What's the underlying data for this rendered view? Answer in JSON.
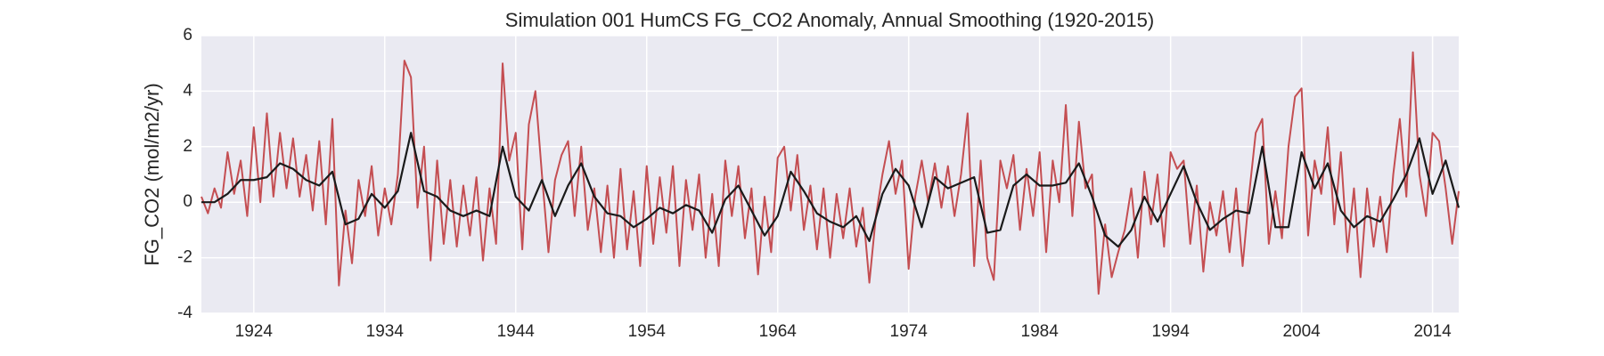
{
  "chart_data": {
    "type": "line",
    "title": "Simulation 001 HumCS FG_CO2 Anomaly, Annual Smoothing (1920-2015)",
    "y_label": "FG_CO2 (mol/m2/yr)",
    "xlim": [
      1920,
      2016
    ],
    "xticks": [
      1924,
      1934,
      1944,
      1954,
      1964,
      1974,
      1984,
      1994,
      2004,
      2014
    ],
    "ylim": [
      -4,
      6
    ],
    "yticks": [
      -4,
      -2,
      0,
      2,
      4,
      6
    ],
    "grid": true,
    "background": "#eaeaf2",
    "series": [
      {
        "color": "#c44e52",
        "x": [
          1920,
          1920.5,
          1921,
          1921.5,
          1922,
          1922.5,
          1923,
          1923.5,
          1924,
          1924.5,
          1925,
          1925.5,
          1926,
          1926.5,
          1927,
          1927.5,
          1928,
          1928.5,
          1929,
          1929.5,
          1930,
          1930.5,
          1931,
          1931.5,
          1932,
          1932.5,
          1933,
          1933.5,
          1934,
          1934.5,
          1935,
          1935.5,
          1936,
          1936.5,
          1937,
          1937.5,
          1938,
          1938.5,
          1939,
          1939.5,
          1940,
          1940.5,
          1941,
          1941.5,
          1942,
          1942.5,
          1943,
          1943.5,
          1944,
          1944.5,
          1945,
          1945.5,
          1946,
          1946.5,
          1947,
          1947.5,
          1948,
          1948.5,
          1949,
          1949.5,
          1950,
          1950.5,
          1951,
          1951.5,
          1952,
          1952.5,
          1953,
          1953.5,
          1954,
          1954.5,
          1955,
          1955.5,
          1956,
          1956.5,
          1957,
          1957.5,
          1958,
          1958.5,
          1959,
          1959.5,
          1960,
          1960.5,
          1961,
          1961.5,
          1962,
          1962.5,
          1963,
          1963.5,
          1964,
          1964.5,
          1965,
          1965.5,
          1966,
          1966.5,
          1967,
          1967.5,
          1968,
          1968.5,
          1969,
          1969.5,
          1970,
          1970.5,
          1971,
          1971.5,
          1972,
          1972.5,
          1973,
          1973.5,
          1974,
          1974.5,
          1975,
          1975.5,
          1976,
          1976.5,
          1977,
          1977.5,
          1978,
          1978.5,
          1979,
          1979.5,
          1980,
          1980.5,
          1981,
          1981.5,
          1982,
          1982.5,
          1983,
          1983.5,
          1984,
          1984.5,
          1985,
          1985.5,
          1986,
          1986.5,
          1987,
          1987.5,
          1988,
          1988.5,
          1989,
          1989.5,
          1990,
          1990.5,
          1991,
          1991.5,
          1992,
          1992.5,
          1993,
          1993.5,
          1994,
          1994.5,
          1995,
          1995.5,
          1996,
          1996.5,
          1997,
          1997.5,
          1998,
          1998.5,
          1999,
          1999.5,
          2000,
          2000.5,
          2001,
          2001.5,
          2002,
          2002.5,
          2003,
          2003.5,
          2004,
          2004.5,
          2005,
          2005.5,
          2006,
          2006.5,
          2007,
          2007.5,
          2008,
          2008.5,
          2009,
          2009.5,
          2010,
          2010.5,
          2011,
          2011.5,
          2012,
          2012.5,
          2013,
          2013.5,
          2014,
          2014.5,
          2015,
          2015.5,
          2016
        ],
        "values": [
          0.2,
          -0.4,
          0.5,
          -0.2,
          1.8,
          0.3,
          1.5,
          -0.5,
          2.7,
          0.0,
          3.2,
          0.2,
          2.5,
          0.5,
          2.3,
          0.2,
          1.7,
          -0.3,
          2.2,
          -0.8,
          3.0,
          -3.0,
          -0.3,
          -2.2,
          0.8,
          -0.5,
          1.3,
          -1.2,
          0.5,
          -0.8,
          1.0,
          5.1,
          4.5,
          -0.2,
          2.0,
          -2.1,
          1.5,
          -1.5,
          0.8,
          -1.6,
          0.6,
          -1.2,
          0.9,
          -2.1,
          0.5,
          -1.5,
          5.0,
          1.5,
          2.5,
          -1.7,
          2.8,
          4.0,
          1.0,
          -1.8,
          0.8,
          1.7,
          2.2,
          -0.5,
          2.0,
          -1.0,
          0.5,
          -1.8,
          0.6,
          -2.0,
          1.2,
          -1.7,
          0.4,
          -2.3,
          1.3,
          -1.5,
          0.9,
          -1.1,
          1.3,
          -2.3,
          0.8,
          -1.0,
          1.0,
          -2.0,
          0.3,
          -2.3,
          1.5,
          -0.5,
          1.3,
          -1.3,
          0.5,
          -2.6,
          0.2,
          -1.8,
          1.6,
          2.0,
          -0.3,
          1.7,
          -1.0,
          0.6,
          -1.7,
          0.5,
          -2.0,
          0.3,
          -1.3,
          0.5,
          -1.6,
          -0.2,
          -2.9,
          -0.5,
          1.0,
          2.2,
          0.3,
          1.5,
          -2.4,
          0.2,
          1.5,
          0.0,
          1.4,
          -0.2,
          1.3,
          -0.5,
          1.0,
          3.2,
          -2.3,
          1.5,
          -2.0,
          -2.8,
          1.5,
          0.5,
          1.7,
          -1.0,
          1.2,
          -0.5,
          1.8,
          -1.8,
          1.5,
          0.0,
          3.5,
          -0.5,
          2.9,
          0.5,
          1.0,
          -3.3,
          -0.8,
          -2.7,
          -1.8,
          -1.0,
          0.5,
          -2.0,
          1.1,
          -0.8,
          1.0,
          -1.6,
          1.8,
          1.2,
          1.5,
          -1.5,
          0.6,
          -2.5,
          0.0,
          -1.2,
          0.4,
          -1.8,
          0.5,
          -2.3,
          0.3,
          2.5,
          3.0,
          -1.5,
          0.4,
          -1.3,
          2.0,
          3.8,
          4.1,
          -1.2,
          1.5,
          0.3,
          2.7,
          -0.8,
          1.8,
          -1.8,
          0.5,
          -2.7,
          0.5,
          -1.6,
          0.2,
          -1.8,
          1.0,
          3.0,
          0.2,
          5.4,
          1.0,
          -0.5,
          2.5,
          2.2,
          0.5,
          -1.5,
          0.4
        ]
      },
      {
        "color": "#1a1a1a",
        "x": [
          1920,
          1921,
          1922,
          1923,
          1924,
          1925,
          1926,
          1927,
          1928,
          1929,
          1930,
          1931,
          1932,
          1933,
          1934,
          1935,
          1936,
          1937,
          1938,
          1939,
          1940,
          1941,
          1942,
          1943,
          1944,
          1945,
          1946,
          1947,
          1948,
          1949,
          1950,
          1951,
          1952,
          1953,
          1954,
          1955,
          1956,
          1957,
          1958,
          1959,
          1960,
          1961,
          1962,
          1963,
          1964,
          1965,
          1966,
          1967,
          1968,
          1969,
          1970,
          1971,
          1972,
          1973,
          1974,
          1975,
          1976,
          1977,
          1978,
          1979,
          1980,
          1981,
          1982,
          1983,
          1984,
          1985,
          1986,
          1987,
          1988,
          1989,
          1990,
          1991,
          1992,
          1993,
          1994,
          1995,
          1996,
          1997,
          1998,
          1999,
          2000,
          2001,
          2002,
          2003,
          2004,
          2005,
          2006,
          2007,
          2008,
          2009,
          2010,
          2011,
          2012,
          2013,
          2014,
          2015,
          2016
        ],
        "values": [
          0,
          0,
          0.3,
          0.8,
          0.8,
          0.9,
          1.4,
          1.2,
          0.8,
          0.6,
          1.1,
          -0.8,
          -0.6,
          0.3,
          -0.2,
          0.4,
          2.5,
          0.4,
          0.2,
          -0.3,
          -0.5,
          -0.3,
          -0.5,
          2.0,
          0.2,
          -0.3,
          0.8,
          -0.5,
          0.6,
          1.4,
          0.2,
          -0.4,
          -0.5,
          -0.9,
          -0.6,
          -0.2,
          -0.4,
          -0.1,
          -0.3,
          -1.1,
          0.1,
          0.6,
          -0.3,
          -1.2,
          -0.5,
          1.1,
          0.4,
          -0.4,
          -0.7,
          -0.9,
          -0.5,
          -1.4,
          0.3,
          1.2,
          0.6,
          -0.9,
          0.9,
          0.5,
          0.7,
          0.9,
          -1.1,
          -1.0,
          0.6,
          1.0,
          0.6,
          0.6,
          0.7,
          1.4,
          0.2,
          -1.2,
          -1.6,
          -1.0,
          0.2,
          -0.7,
          0.3,
          1.3,
          0.0,
          -1.0,
          -0.6,
          -0.3,
          -0.4,
          2.0,
          -0.9,
          -0.9,
          1.8,
          0.5,
          1.4,
          -0.3,
          -0.9,
          -0.5,
          -0.7,
          0.1,
          1.0,
          2.3,
          0.3,
          1.5,
          -0.2
        ]
      }
    ]
  }
}
